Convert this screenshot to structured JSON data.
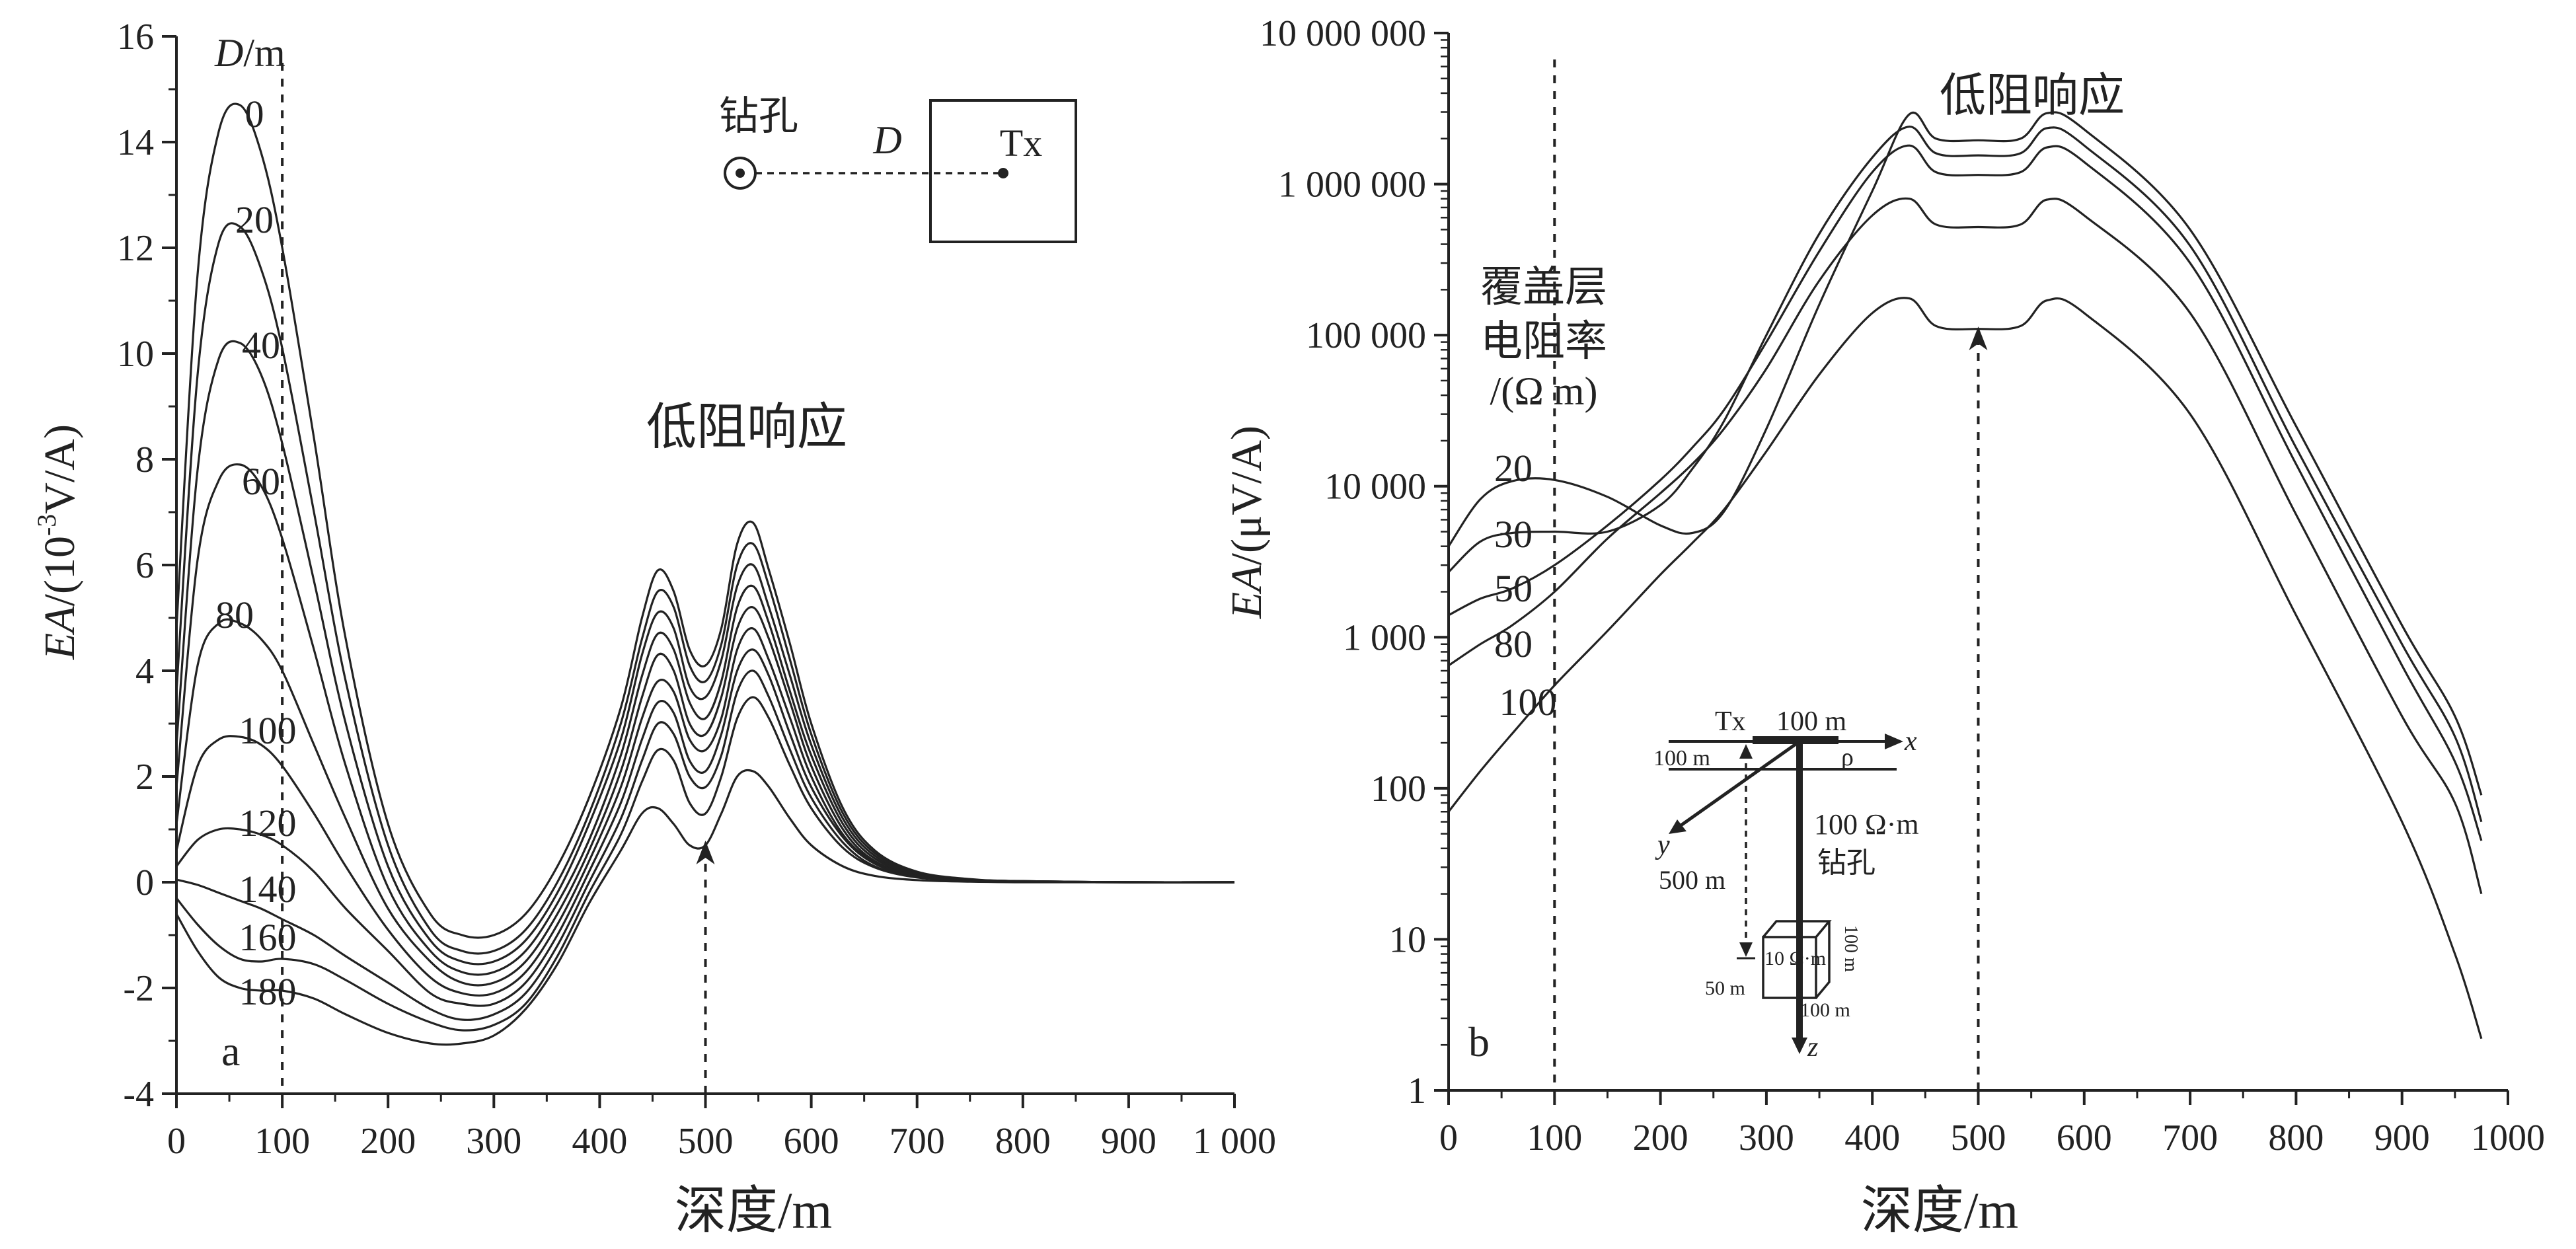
{
  "chart_data": [
    {
      "id": "a",
      "type": "line",
      "panel_label": "a",
      "xlabel": "深度/m",
      "ylabel_italic": "EA",
      "ylabel_rest": "/(10",
      "ylabel_sup": "-3",
      "ylabel_unit": "V/A)",
      "xlim": [
        0,
        1000
      ],
      "ylim": [
        -4,
        16
      ],
      "x_ticks": [
        0,
        100,
        200,
        300,
        400,
        500,
        600,
        700,
        800,
        900,
        1000
      ],
      "x_tick_labels": [
        "0",
        "100",
        "200",
        "300",
        "400",
        "500",
        "600",
        "700",
        "800",
        "900",
        "1 000"
      ],
      "y_ticks": [
        -4,
        -2,
        0,
        2,
        4,
        6,
        8,
        10,
        12,
        14,
        16
      ],
      "y_tick_labels": [
        "-4",
        "-2",
        "0",
        "2",
        "4",
        "6",
        "8",
        "10",
        "12",
        "14",
        "16"
      ],
      "vline_x": 100,
      "arrow_x": 500,
      "annotation": "低阻响应",
      "legend_title_italic": "D",
      "legend_title_rest": "/m",
      "x": [
        0,
        20,
        40,
        60,
        80,
        100,
        130,
        160,
        200,
        240,
        270,
        300,
        330,
        360,
        390,
        420,
        440,
        455,
        470,
        485,
        500,
        515,
        530,
        545,
        560,
        580,
        600,
        630,
        660,
        700,
        750,
        800,
        900,
        1000
      ],
      "series": [
        {
          "name": "0",
          "values": [
            4.8,
            11.5,
            14.2,
            14.7,
            13.8,
            12.0,
            8.4,
            4.6,
            1.1,
            -0.6,
            -1.0,
            -1.0,
            -0.6,
            0.3,
            1.6,
            3.3,
            5.0,
            5.9,
            5.5,
            4.4,
            4.1,
            4.8,
            6.4,
            6.8,
            5.9,
            4.5,
            3.0,
            1.4,
            0.6,
            0.2,
            0.06,
            0.02,
            0,
            0
          ]
        },
        {
          "name": "20",
          "values": [
            3.6,
            9.6,
            12.1,
            12.4,
            11.6,
            10.1,
            7.0,
            3.8,
            0.7,
            -0.9,
            -1.3,
            -1.3,
            -0.9,
            0.0,
            1.3,
            3.0,
            4.6,
            5.5,
            5.2,
            4.1,
            3.8,
            4.5,
            6.0,
            6.4,
            5.6,
            4.2,
            2.8,
            1.3,
            0.55,
            0.18,
            0.05,
            0.02,
            0,
            0
          ]
        },
        {
          "name": "40",
          "values": [
            2.6,
            7.8,
            9.9,
            10.2,
            9.6,
            8.3,
            5.7,
            3.0,
            0.3,
            -1.1,
            -1.5,
            -1.5,
            -1.1,
            -0.2,
            1.1,
            2.7,
            4.3,
            5.1,
            4.8,
            3.7,
            3.5,
            4.2,
            5.6,
            6.0,
            5.2,
            3.9,
            2.6,
            1.2,
            0.5,
            0.16,
            0.05,
            0.02,
            0,
            0
          ]
        },
        {
          "name": "60",
          "values": [
            1.8,
            6.1,
            7.6,
            7.9,
            7.5,
            6.5,
            4.4,
            2.2,
            -0.1,
            -1.3,
            -1.7,
            -1.7,
            -1.3,
            -0.4,
            0.8,
            2.4,
            3.9,
            4.7,
            4.4,
            3.4,
            3.1,
            3.8,
            5.2,
            5.6,
            4.9,
            3.6,
            2.4,
            1.1,
            0.45,
            0.15,
            0.04,
            0.01,
            0,
            0
          ]
        },
        {
          "name": "80",
          "values": [
            1.1,
            4.1,
            4.9,
            4.9,
            4.6,
            4.0,
            2.6,
            1.2,
            -0.5,
            -1.5,
            -1.9,
            -1.9,
            -1.5,
            -0.6,
            0.6,
            2.1,
            3.5,
            4.3,
            4.0,
            3.0,
            2.8,
            3.5,
            4.8,
            5.2,
            4.6,
            3.4,
            2.2,
            1.0,
            0.4,
            0.13,
            0.04,
            0.01,
            0,
            0
          ]
        },
        {
          "name": "100",
          "values": [
            0.6,
            2.2,
            2.7,
            2.75,
            2.6,
            2.2,
            1.3,
            0.3,
            -0.9,
            -1.8,
            -2.1,
            -2.1,
            -1.7,
            -0.8,
            0.4,
            1.8,
            3.1,
            3.8,
            3.6,
            2.7,
            2.5,
            3.1,
            4.4,
            4.8,
            4.2,
            3.1,
            2.0,
            0.9,
            0.38,
            0.12,
            0.04,
            0.01,
            0,
            0
          ]
        },
        {
          "name": "120",
          "values": [
            0.3,
            0.8,
            1.0,
            1.0,
            0.9,
            0.7,
            0.2,
            -0.5,
            -1.3,
            -2.1,
            -2.3,
            -2.3,
            -1.9,
            -1.0,
            0.2,
            1.5,
            2.7,
            3.4,
            3.2,
            2.3,
            2.1,
            2.8,
            4.0,
            4.4,
            3.9,
            2.8,
            1.8,
            0.85,
            0.35,
            0.11,
            0.03,
            0.01,
            0,
            0
          ]
        },
        {
          "name": "140",
          "values": [
            0.05,
            -0.05,
            -0.2,
            -0.35,
            -0.5,
            -0.7,
            -1.0,
            -1.4,
            -1.9,
            -2.4,
            -2.6,
            -2.5,
            -2.1,
            -1.2,
            0.0,
            1.2,
            2.3,
            3.0,
            2.8,
            2.0,
            1.8,
            2.4,
            3.6,
            4.0,
            3.5,
            2.5,
            1.6,
            0.75,
            0.3,
            0.1,
            0.03,
            0.01,
            0,
            0
          ]
        },
        {
          "name": "160",
          "values": [
            -0.3,
            -0.8,
            -1.2,
            -1.45,
            -1.5,
            -1.45,
            -1.55,
            -1.85,
            -2.3,
            -2.65,
            -2.8,
            -2.7,
            -2.3,
            -1.4,
            -0.2,
            0.9,
            1.9,
            2.5,
            2.3,
            1.5,
            1.3,
            2.0,
            3.1,
            3.5,
            3.1,
            2.2,
            1.4,
            0.65,
            0.28,
            0.09,
            0.03,
            0.01,
            0,
            0
          ]
        },
        {
          "name": "180",
          "values": [
            -0.6,
            -1.3,
            -1.8,
            -2.0,
            -2.05,
            -2.05,
            -2.2,
            -2.5,
            -2.85,
            -3.05,
            -3.05,
            -2.9,
            -2.4,
            -1.55,
            -0.4,
            0.6,
            1.3,
            1.4,
            1.1,
            0.7,
            0.7,
            1.3,
            2.0,
            2.1,
            1.8,
            1.2,
            0.7,
            0.3,
            0.12,
            0.04,
            0.01,
            0,
            0,
            0
          ]
        }
      ],
      "inset": {
        "hole_label": "钻孔",
        "distance_label": "D",
        "source_label": "Tx"
      }
    },
    {
      "id": "b",
      "type": "line",
      "panel_label": "b",
      "xlabel": "深度/m",
      "ylabel_italic": "EA",
      "ylabel_rest": "/(μV/A)",
      "y_scale": "log",
      "xlim": [
        0,
        1000
      ],
      "ylim": [
        1,
        10000000
      ],
      "x_ticks": [
        0,
        100,
        200,
        300,
        400,
        500,
        600,
        700,
        800,
        900,
        1000
      ],
      "x_tick_labels": [
        "0",
        "100",
        "200",
        "300",
        "400",
        "500",
        "600",
        "700",
        "800",
        "900",
        "1000"
      ],
      "y_ticks": [
        1,
        10,
        100,
        1000,
        10000,
        100000,
        1000000,
        10000000
      ],
      "y_tick_labels": [
        "1",
        "10",
        "100",
        "1 000",
        "10 000",
        "100 000",
        "1 000 000",
        "10 000 000"
      ],
      "vline_x": 100,
      "arrow_x": 500,
      "annotation": "低阻响应",
      "legend_title_lines": [
        "覆盖层",
        "电阻率",
        "/(Ω m)"
      ],
      "x": [
        0,
        30,
        60,
        100,
        150,
        200,
        230,
        260,
        300,
        350,
        400,
        435,
        460,
        500,
        540,
        565,
        600,
        700,
        800,
        900,
        950,
        975
      ],
      "series": [
        {
          "name": "20",
          "values": [
            4000,
            8200,
            10800,
            11000,
            8500,
            5500,
            4900,
            6800,
            24000,
            160000,
            900000,
            2900000,
            2000000,
            1950000,
            2000000,
            2950000,
            2300000,
            500000,
            25000,
            1200,
            300,
            90
          ]
        },
        {
          "name": "30",
          "values": [
            2700,
            4300,
            4900,
            5000,
            5000,
            7500,
            13000,
            27000,
            100000,
            470000,
            1500000,
            2400000,
            1600000,
            1550000,
            1600000,
            2350000,
            1800000,
            390000,
            18000,
            900,
            220,
            60
          ]
        },
        {
          "name": "50",
          "values": [
            1400,
            1800,
            2100,
            3000,
            5500,
            11000,
            18000,
            32000,
            90000,
            360000,
            1200000,
            1800000,
            1200000,
            1150000,
            1200000,
            1750000,
            1400000,
            300000,
            14000,
            650,
            150,
            45
          ]
        },
        {
          "name": "80",
          "values": [
            650,
            900,
            1200,
            2000,
            4500,
            9000,
            14000,
            24000,
            60000,
            230000,
            620000,
            800000,
            540000,
            520000,
            540000,
            790000,
            620000,
            140000,
            6500,
            300,
            80,
            20
          ]
        },
        {
          "name": "100",
          "values": [
            70,
            130,
            230,
            480,
            1100,
            2600,
            4200,
            7000,
            17000,
            55000,
            140000,
            175000,
            115000,
            110000,
            115000,
            170000,
            140000,
            30000,
            1400,
            60,
            8,
            2.2
          ]
        }
      ],
      "inset": {
        "tx_label": "Tx",
        "tx_length": "100 m",
        "x_axis": "x",
        "y_axis": "y",
        "z_axis": "z",
        "cover_thickness": "100 m",
        "rho": "ρ",
        "host_resistivity": "100 Ω·m",
        "borehole": "钻孔",
        "depth": "500 m",
        "body_resistivity": "10 Ω·m",
        "body_height": "100 m",
        "body_width": "100 m",
        "body_depth": "50 m"
      }
    }
  ]
}
